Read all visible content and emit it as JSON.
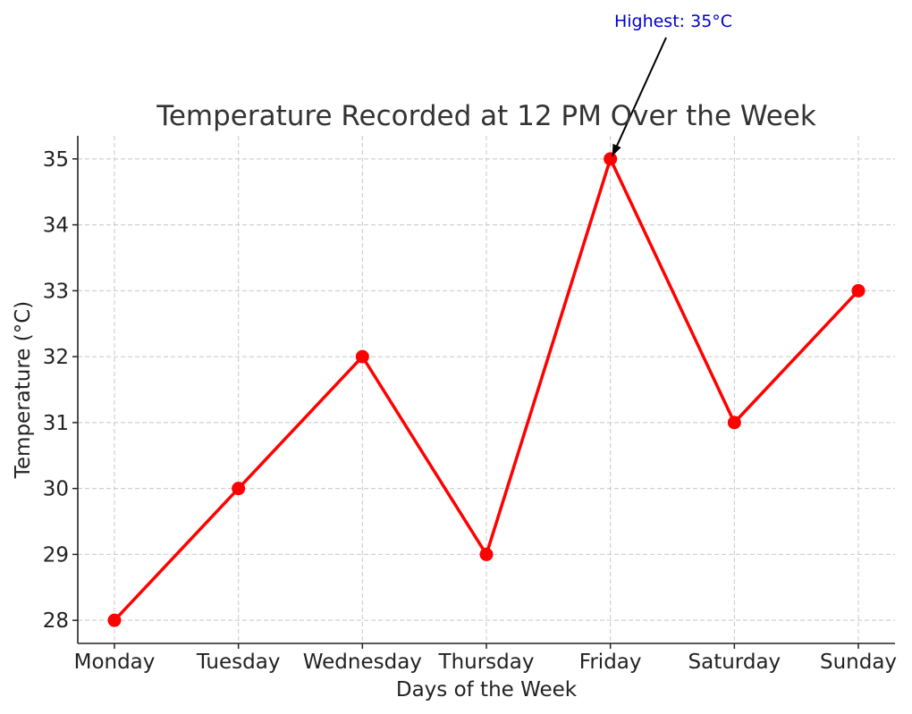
{
  "chart_data": {
    "type": "line",
    "title": "Temperature Recorded at 12 PM Over the Week",
    "xlabel": "Days of the Week",
    "ylabel": "Temperature (°C)",
    "categories": [
      "Monday",
      "Tuesday",
      "Wednesday",
      "Thursday",
      "Friday",
      "Saturday",
      "Sunday"
    ],
    "series": [
      {
        "values": [
          28,
          30,
          32,
          29,
          35,
          31,
          33
        ],
        "color": "#ff0000",
        "marker": "circle"
      }
    ],
    "yticks": [
      28,
      29,
      30,
      31,
      32,
      33,
      34,
      35
    ],
    "ylim": [
      27.65,
      35.35
    ],
    "grid": true,
    "annotation": {
      "text": "Highest: 35°C",
      "category": "Friday",
      "value": 35,
      "color": "#0000cc",
      "arrow_color": "#000000"
    }
  }
}
